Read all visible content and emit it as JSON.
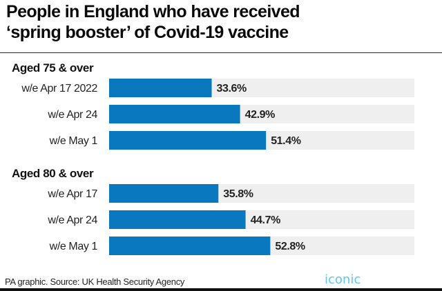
{
  "header": {
    "title_line1": "People in England who have received",
    "title_line2": "‘spring booster’ of Covid-19 vaccine"
  },
  "footer": {
    "source": "PA graphic. Source: UK Health Security Agency"
  },
  "watermark": {
    "text": "iconic"
  },
  "colors": {
    "bar": "#0a78be",
    "track": "#efefef",
    "text": "#222222"
  },
  "chart_data": {
    "type": "bar",
    "orientation": "horizontal",
    "title": "People in England who have received ‘spring booster’ of Covid-19 vaccine",
    "xlim": [
      0,
      100
    ],
    "unit": "%",
    "grid": false,
    "groups": [
      {
        "name": "Aged 75 & over",
        "categories": [
          "w/e Apr 17 2022",
          "w/e Apr 24",
          "w/e May 1"
        ],
        "values": [
          33.6,
          42.9,
          51.4
        ],
        "labels": [
          "33.6%",
          "42.9%",
          "51.4%"
        ]
      },
      {
        "name": "Aged 80 & over",
        "categories": [
          "w/e Apr 17",
          "w/e Apr 24",
          "w/e May 1"
        ],
        "values": [
          35.8,
          44.7,
          52.8
        ],
        "labels": [
          "35.8%",
          "44.7%",
          "52.8%"
        ]
      }
    ]
  }
}
